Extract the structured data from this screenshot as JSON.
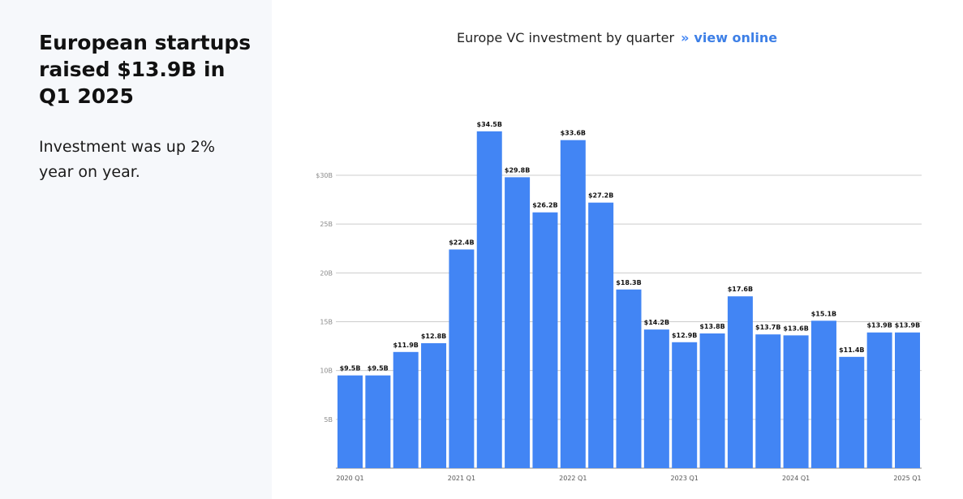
{
  "sidebar": {
    "headline": "European startups raised $13.9B in Q1 2025",
    "subtext": "Investment was up 2% year on year."
  },
  "header": {
    "chart_title": "Europe VC investment by quarter",
    "separator": "»",
    "link_label": "view online"
  },
  "colors": {
    "bar": "#4285f4",
    "link": "#3d7fe6",
    "sidebar_bg": "#f6f8fb"
  },
  "chart_data": {
    "type": "bar",
    "title": "Europe VC investment by quarter",
    "xlabel": "",
    "ylabel": "",
    "ylim": [
      0,
      30
    ],
    "grid": true,
    "yticks": [
      {
        "value": 30,
        "label": "$30B"
      },
      {
        "value": 25,
        "label": "25B"
      },
      {
        "value": 20,
        "label": "20B"
      },
      {
        "value": 15,
        "label": "15B"
      },
      {
        "value": 10,
        "label": "10B"
      },
      {
        "value": 5,
        "label": "5B"
      }
    ],
    "categories": [
      "2020 Q1",
      "2020 Q2",
      "2020 Q3",
      "2020 Q4",
      "2021 Q1",
      "2021 Q2",
      "2021 Q3",
      "2021 Q4",
      "2022 Q1",
      "2022 Q2",
      "2022 Q3",
      "2022 Q4",
      "2023 Q1",
      "2023 Q2",
      "2023 Q3",
      "2023 Q4",
      "2024 Q1",
      "2024 Q2",
      "2024 Q3",
      "2024 Q4",
      "2025 Q1"
    ],
    "xtick_labels": [
      "2020 Q1",
      "2021 Q1",
      "2022 Q1",
      "2023 Q1",
      "2024 Q1",
      "2025 Q1"
    ],
    "values": [
      9.5,
      9.5,
      11.9,
      12.8,
      22.4,
      34.5,
      29.8,
      26.2,
      33.6,
      27.2,
      18.3,
      14.2,
      12.9,
      13.8,
      17.6,
      13.7,
      13.6,
      15.1,
      11.4,
      13.9,
      13.9
    ],
    "data_labels": [
      "$9.5B",
      "$9.5B",
      "$11.9B",
      "$12.8B",
      "$22.4B",
      "$34.5B",
      "$29.8B",
      "$26.2B",
      "$33.6B",
      "$27.2B",
      "$18.3B",
      "$14.2B",
      "$12.9B",
      "$13.8B",
      "$17.6B",
      "$13.7B",
      "$13.6B",
      "$15.1B",
      "$11.4B",
      "$13.9B",
      "$13.9B"
    ]
  }
}
